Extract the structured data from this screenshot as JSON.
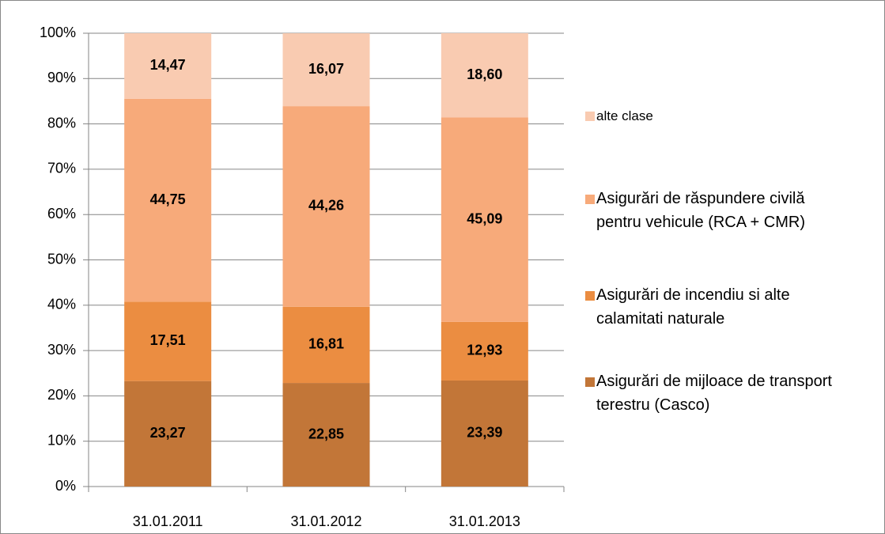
{
  "chart_data": {
    "type": "stacked-bar",
    "categories": [
      "31.01.2011",
      "31.01.2012",
      "31.01.2013"
    ],
    "series": [
      {
        "name": "Asigurări de mijloace de transport terestru (Casco)",
        "color": "#c27638",
        "values": [
          23.27,
          22.85,
          23.39
        ],
        "value_labels": [
          "23,27",
          "22,85",
          "23,39"
        ]
      },
      {
        "name": "Asigurări de incendiu si alte calamitati naturale",
        "color": "#eb8d41",
        "values": [
          17.51,
          16.81,
          12.93
        ],
        "value_labels": [
          "17,51",
          "16,81",
          "12,93"
        ]
      },
      {
        "name": "Asigurări de răspundere civilă pentru vehicule (RCA + CMR)",
        "color": "#f7aa7a",
        "values": [
          44.75,
          44.26,
          45.09
        ],
        "value_labels": [
          "44,75",
          "44,26",
          "45,09"
        ]
      },
      {
        "name": "alte clase",
        "color": "#f9cbb1",
        "values": [
          14.47,
          16.07,
          18.6
        ],
        "value_labels": [
          "14,47",
          "16,07",
          "18,60"
        ]
      }
    ],
    "ylim": [
      0,
      100
    ],
    "yticks": [
      {
        "value": 0,
        "label": "0%"
      },
      {
        "value": 10,
        "label": "10%"
      },
      {
        "value": 20,
        "label": "20%"
      },
      {
        "value": 30,
        "label": "30%"
      },
      {
        "value": 40,
        "label": "40%"
      },
      {
        "value": 50,
        "label": "50%"
      },
      {
        "value": 60,
        "label": "60%"
      },
      {
        "value": 70,
        "label": "70%"
      },
      {
        "value": 80,
        "label": "80%"
      },
      {
        "value": 90,
        "label": "90%"
      },
      {
        "value": 100,
        "label": "100%"
      }
    ],
    "grid": true,
    "legend": "right"
  }
}
